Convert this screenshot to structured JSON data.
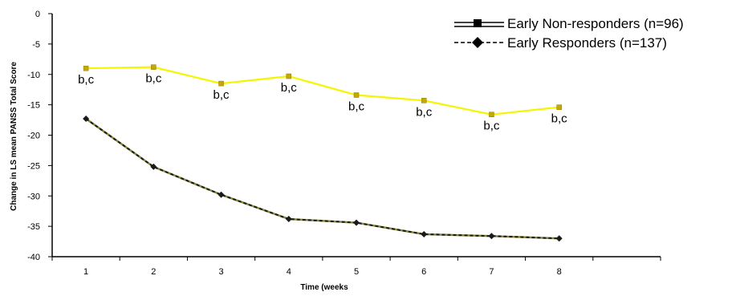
{
  "chart_data": {
    "type": "line",
    "title": "",
    "xlabel": "Time (weeks",
    "ylabel": "Change in LS mean PANSS Total Score",
    "x": [
      1,
      2,
      3,
      4,
      5,
      6,
      7,
      8
    ],
    "x_tick_labels": [
      "1",
      "2",
      "3",
      "4",
      "5",
      "6",
      "7",
      "8"
    ],
    "ylim": [
      -40,
      0
    ],
    "y_ticks": [
      0,
      -5,
      -10,
      -15,
      -20,
      -25,
      -30,
      -35,
      -40
    ],
    "xlim": [
      0.5,
      9.5
    ],
    "grid": false,
    "legend_position": "top-right",
    "series": [
      {
        "name": "Early Non-responders (n=96)",
        "values": [
          -9.0,
          -8.8,
          -11.5,
          -10.3,
          -13.4,
          -14.3,
          -16.6,
          -15.4
        ],
        "color": "#f5f500",
        "marker": "square",
        "legend_color": "#000000",
        "annotations": [
          "b,c",
          "b,c",
          "b,c",
          "b,c",
          "b,c",
          "b,c",
          "b,c",
          "b,c"
        ]
      },
      {
        "name": "Early Responders (n=137)",
        "values": [
          -17.3,
          -25.2,
          -29.8,
          -33.8,
          -34.4,
          -36.3,
          -36.6,
          -37.0
        ],
        "color": "#1a1a1a",
        "dash_color": "#8a8a3a",
        "marker": "diamond",
        "legend_color": "#000000"
      }
    ]
  }
}
